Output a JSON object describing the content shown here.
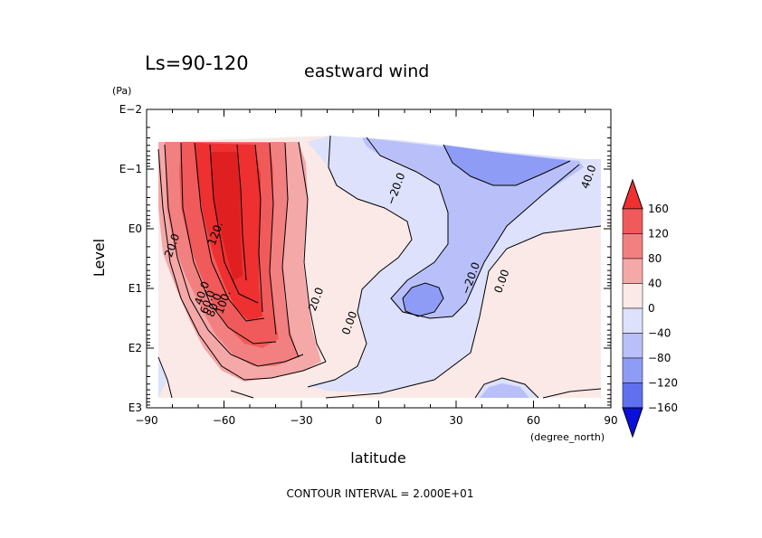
{
  "chart_data": {
    "type": "contour",
    "title_left": "Ls=90-120",
    "title_right": "eastward wind",
    "xlabel": "latitude",
    "x_units": "(degree_north)",
    "ylabel": "Level",
    "y_units": "(Pa)",
    "xlim": [
      -90,
      90
    ],
    "x_ticks": [
      {
        "value": -90,
        "label": "−90"
      },
      {
        "value": -60,
        "label": "−60"
      },
      {
        "value": -30,
        "label": "−30"
      },
      {
        "value": 0,
        "label": "0"
      },
      {
        "value": 30,
        "label": "30"
      },
      {
        "value": 60,
        "label": "60"
      },
      {
        "value": 90,
        "label": "90"
      }
    ],
    "y_scale": "log",
    "ylim_exponent": [
      -2,
      3
    ],
    "y_ticks": [
      {
        "exponent": -2,
        "label": "E−2"
      },
      {
        "exponent": -1,
        "label": "E−1"
      },
      {
        "exponent": 0,
        "label": "E0"
      },
      {
        "exponent": 1,
        "label": "E1"
      },
      {
        "exponent": 2,
        "label": "E2"
      },
      {
        "exponent": 3,
        "label": "E3"
      }
    ],
    "y_inverted": true,
    "contour_interval": 20,
    "footer": "CONTOUR INTERVAL = 2.000E+01",
    "contour_labels": [
      {
        "text": "40.0",
        "lat": 82.7,
        "exp": -0.85
      },
      {
        "text": "120.",
        "lat": -62,
        "exp": 0.1
      },
      {
        "text": "20.0",
        "lat": -78.8,
        "exp": 0.3
      },
      {
        "text": "40.0",
        "lat": -67.2,
        "exp": 1.1
      },
      {
        "text": "60.0",
        "lat": -65,
        "exp": 1.25
      },
      {
        "text": "80.0",
        "lat": -62.5,
        "exp": 1.3
      },
      {
        "text": "100.",
        "lat": -59,
        "exp": 1.25
      },
      {
        "text": "20.0",
        "lat": -23,
        "exp": 1.2
      },
      {
        "text": "0.00",
        "lat": -10,
        "exp": 1.6
      },
      {
        "text": "−20.0",
        "lat": 8,
        "exp": -0.65
      },
      {
        "text": "−20.0",
        "lat": 37,
        "exp": 0.85
      },
      {
        "text": "0.00",
        "lat": 49,
        "exp": 0.9
      }
    ],
    "colorbar": {
      "levels": [
        "160",
        "120",
        "80",
        "40",
        "0",
        "−40",
        "−80",
        "−120",
        "−160"
      ],
      "colors": [
        "#ee3030",
        "#f05a5a",
        "#f28080",
        "#f5a8a8",
        "#fbe9e7",
        "#dde1fb",
        "#b9c0f9",
        "#8f9cf5",
        "#6070ef",
        "#3748ea",
        "#1623e6",
        "#0a10d8"
      ]
    }
  }
}
